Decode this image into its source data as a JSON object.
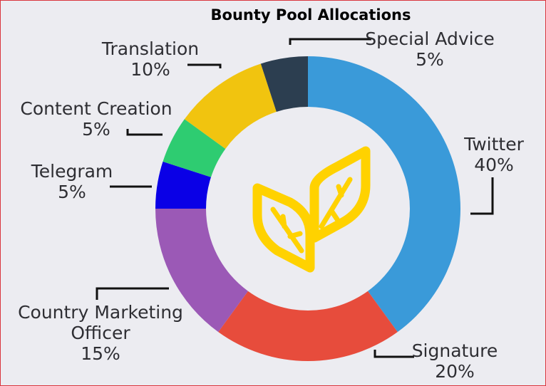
{
  "chart_data": {
    "type": "pie",
    "title": "Bounty Pool Allocations",
    "donut": true,
    "categories": [
      "Twitter",
      "Signature",
      "Country Marketing Officer",
      "Telegram",
      "Content Creation",
      "Translation",
      "Special Advice"
    ],
    "values": [
      40,
      20,
      15,
      5,
      5,
      10,
      5
    ],
    "value_labels": [
      "40%",
      "20%",
      "15%",
      "5%",
      "5%",
      "10%",
      "5%"
    ],
    "label_lines": {
      "Twitter": [
        "Twitter"
      ],
      "Signature": [
        "Signature"
      ],
      "Country Marketing Officer": [
        "Country Marketing",
        "Officer"
      ],
      "Telegram": [
        "Telegram"
      ],
      "Content Creation": [
        "Content Creation"
      ],
      "Translation": [
        "Translation"
      ],
      "Special Advice": [
        "Special Advice"
      ]
    },
    "colors": [
      "#3a9ad9",
      "#e74c3c",
      "#9b59b6",
      "#0a00e6",
      "#2ecc71",
      "#f1c40f",
      "#2c3e50"
    ],
    "legend": "none",
    "center_icon": "yellow-leaf-sprout-icon",
    "center_icon_color": "#ffd200"
  }
}
